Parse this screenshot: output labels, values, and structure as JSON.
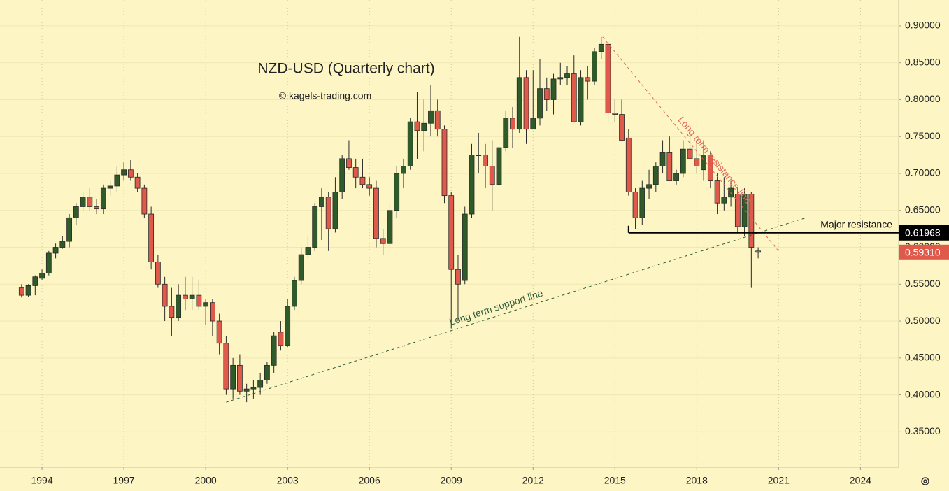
{
  "chart_data": {
    "type": "candlestick",
    "title": "NZD-USD (Quarterly chart)",
    "subtitle": "© kagels-trading.com",
    "up_color": "#2f5a2a",
    "down_color": "#e05a4b",
    "xlim": [
      1992.46,
      2025.4
    ],
    "ylim": [
      0.302,
      0.935
    ],
    "xticks": [
      1994,
      1997,
      2000,
      2003,
      2006,
      2009,
      2012,
      2015,
      2018,
      2021,
      2024
    ],
    "yticks": [
      {
        "value": 0.35,
        "label": "0.35000"
      },
      {
        "value": 0.4,
        "label": "0.40000"
      },
      {
        "value": 0.45,
        "label": "0.45000"
      },
      {
        "value": 0.5,
        "label": "0.50000"
      },
      {
        "value": 0.55,
        "label": "0.55000"
      },
      {
        "value": 0.6,
        "label": "0.60000"
      },
      {
        "value": 0.65,
        "label": "0.65000"
      },
      {
        "value": 0.7,
        "label": "0.70000"
      },
      {
        "value": 0.75,
        "label": "0.75000"
      },
      {
        "value": 0.8,
        "label": "0.80000"
      },
      {
        "value": 0.85,
        "label": "0.85000"
      },
      {
        "value": 0.9,
        "label": "0.90000"
      }
    ],
    "grid": true,
    "x": [
      1993.25,
      1993.5,
      1993.75,
      1994,
      1994.25,
      1994.5,
      1994.75,
      1995,
      1995.25,
      1995.5,
      1995.75,
      1996,
      1996.25,
      1996.5,
      1996.75,
      1997,
      1997.25,
      1997.5,
      1997.75,
      1998,
      1998.25,
      1998.5,
      1998.75,
      1999,
      1999.25,
      1999.5,
      1999.75,
      2000,
      2000.25,
      2000.5,
      2000.75,
      2001,
      2001.25,
      2001.5,
      2001.75,
      2002,
      2002.25,
      2002.5,
      2002.75,
      2003,
      2003.25,
      2003.5,
      2003.75,
      2004,
      2004.25,
      2004.5,
      2004.75,
      2005,
      2005.25,
      2005.5,
      2005.75,
      2006,
      2006.25,
      2006.5,
      2006.75,
      2007,
      2007.25,
      2007.5,
      2007.75,
      2008,
      2008.25,
      2008.5,
      2008.75,
      2009,
      2009.25,
      2009.5,
      2009.75,
      2010,
      2010.25,
      2010.5,
      2010.75,
      2011,
      2011.25,
      2011.5,
      2011.75,
      2012,
      2012.25,
      2012.5,
      2012.75,
      2013,
      2013.25,
      2013.5,
      2013.75,
      2014,
      2014.25,
      2014.5,
      2014.75,
      2015,
      2015.25,
      2015.5,
      2015.75,
      2016,
      2016.25,
      2016.5,
      2016.75,
      2017,
      2017.25,
      2017.5,
      2017.75,
      2018,
      2018.25,
      2018.5,
      2018.75,
      2019,
      2019.25,
      2019.5,
      2019.75,
      2020,
      2020.25
    ],
    "ohlc": [
      [
        0.545,
        0.55,
        0.532,
        0.535
      ],
      [
        0.535,
        0.55,
        0.533,
        0.548
      ],
      [
        0.548,
        0.562,
        0.535,
        0.56
      ],
      [
        0.558,
        0.57,
        0.555,
        0.565
      ],
      [
        0.565,
        0.595,
        0.562,
        0.592
      ],
      [
        0.592,
        0.605,
        0.585,
        0.6
      ],
      [
        0.6,
        0.615,
        0.598,
        0.608
      ],
      [
        0.608,
        0.645,
        0.6,
        0.64
      ],
      [
        0.64,
        0.66,
        0.63,
        0.655
      ],
      [
        0.655,
        0.675,
        0.65,
        0.668
      ],
      [
        0.668,
        0.68,
        0.65,
        0.655
      ],
      [
        0.655,
        0.665,
        0.645,
        0.652
      ],
      [
        0.652,
        0.685,
        0.645,
        0.68
      ],
      [
        0.68,
        0.69,
        0.67,
        0.683
      ],
      [
        0.683,
        0.71,
        0.675,
        0.698
      ],
      [
        0.698,
        0.715,
        0.69,
        0.705
      ],
      [
        0.705,
        0.718,
        0.69,
        0.695
      ],
      [
        0.695,
        0.7,
        0.675,
        0.68
      ],
      [
        0.68,
        0.685,
        0.64,
        0.645
      ],
      [
        0.645,
        0.655,
        0.57,
        0.58
      ],
      [
        0.58,
        0.59,
        0.545,
        0.55
      ],
      [
        0.55,
        0.56,
        0.5,
        0.52
      ],
      [
        0.52,
        0.545,
        0.48,
        0.505
      ],
      [
        0.505,
        0.55,
        0.5,
        0.535
      ],
      [
        0.535,
        0.56,
        0.515,
        0.53
      ],
      [
        0.53,
        0.56,
        0.515,
        0.535
      ],
      [
        0.535,
        0.555,
        0.515,
        0.52
      ],
      [
        0.52,
        0.53,
        0.495,
        0.525
      ],
      [
        0.525,
        0.53,
        0.48,
        0.5
      ],
      [
        0.5,
        0.51,
        0.455,
        0.47
      ],
      [
        0.47,
        0.48,
        0.4,
        0.408
      ],
      [
        0.408,
        0.45,
        0.395,
        0.44
      ],
      [
        0.44,
        0.455,
        0.4,
        0.405
      ],
      [
        0.405,
        0.415,
        0.39,
        0.408
      ],
      [
        0.408,
        0.42,
        0.395,
        0.41
      ],
      [
        0.41,
        0.43,
        0.4,
        0.42
      ],
      [
        0.42,
        0.445,
        0.415,
        0.44
      ],
      [
        0.44,
        0.485,
        0.43,
        0.48
      ],
      [
        0.485,
        0.5,
        0.46,
        0.467
      ],
      [
        0.467,
        0.53,
        0.465,
        0.52
      ],
      [
        0.52,
        0.56,
        0.515,
        0.555
      ],
      [
        0.555,
        0.6,
        0.55,
        0.59
      ],
      [
        0.59,
        0.615,
        0.585,
        0.6
      ],
      [
        0.6,
        0.66,
        0.595,
        0.655
      ],
      [
        0.655,
        0.68,
        0.61,
        0.668
      ],
      [
        0.668,
        0.675,
        0.595,
        0.625
      ],
      [
        0.625,
        0.695,
        0.62,
        0.675
      ],
      [
        0.675,
        0.725,
        0.665,
        0.72
      ],
      [
        0.72,
        0.745,
        0.705,
        0.708
      ],
      [
        0.708,
        0.72,
        0.68,
        0.695
      ],
      [
        0.695,
        0.72,
        0.68,
        0.685
      ],
      [
        0.685,
        0.695,
        0.67,
        0.68
      ],
      [
        0.68,
        0.69,
        0.6,
        0.612
      ],
      [
        0.612,
        0.625,
        0.59,
        0.605
      ],
      [
        0.605,
        0.66,
        0.6,
        0.65
      ],
      [
        0.65,
        0.71,
        0.64,
        0.7
      ],
      [
        0.7,
        0.72,
        0.68,
        0.71
      ],
      [
        0.71,
        0.775,
        0.705,
        0.77
      ],
      [
        0.77,
        0.81,
        0.72,
        0.758
      ],
      [
        0.758,
        0.8,
        0.73,
        0.768
      ],
      [
        0.768,
        0.82,
        0.75,
        0.785
      ],
      [
        0.785,
        0.8,
        0.75,
        0.76
      ],
      [
        0.76,
        0.765,
        0.66,
        0.67
      ],
      [
        0.67,
        0.675,
        0.49,
        0.57
      ],
      [
        0.57,
        0.59,
        0.5,
        0.55
      ],
      [
        0.555,
        0.655,
        0.55,
        0.645
      ],
      [
        0.645,
        0.74,
        0.64,
        0.725
      ],
      [
        0.725,
        0.755,
        0.7,
        0.725
      ],
      [
        0.725,
        0.74,
        0.68,
        0.71
      ],
      [
        0.71,
        0.745,
        0.65,
        0.685
      ],
      [
        0.685,
        0.75,
        0.68,
        0.735
      ],
      [
        0.735,
        0.785,
        0.73,
        0.775
      ],
      [
        0.775,
        0.79,
        0.735,
        0.76
      ],
      [
        0.76,
        0.885,
        0.755,
        0.83
      ],
      [
        0.83,
        0.84,
        0.74,
        0.76
      ],
      [
        0.76,
        0.84,
        0.76,
        0.775
      ],
      [
        0.775,
        0.855,
        0.765,
        0.815
      ],
      [
        0.815,
        0.83,
        0.785,
        0.8
      ],
      [
        0.8,
        0.835,
        0.78,
        0.828
      ],
      [
        0.828,
        0.85,
        0.82,
        0.83
      ],
      [
        0.83,
        0.845,
        0.82,
        0.835
      ],
      [
        0.835,
        0.86,
        0.77,
        0.77
      ],
      [
        0.77,
        0.84,
        0.765,
        0.83
      ],
      [
        0.83,
        0.845,
        0.8,
        0.825
      ],
      [
        0.825,
        0.87,
        0.82,
        0.865
      ],
      [
        0.865,
        0.885,
        0.855,
        0.875
      ],
      [
        0.875,
        0.88,
        0.77,
        0.782
      ],
      [
        0.782,
        0.8,
        0.77,
        0.78
      ],
      [
        0.78,
        0.8,
        0.745,
        0.745
      ],
      [
        0.748,
        0.76,
        0.67,
        0.675
      ],
      [
        0.675,
        0.68,
        0.625,
        0.64
      ],
      [
        0.64,
        0.69,
        0.63,
        0.68
      ],
      [
        0.68,
        0.705,
        0.665,
        0.685
      ],
      [
        0.685,
        0.715,
        0.675,
        0.71
      ],
      [
        0.71,
        0.745,
        0.7,
        0.728
      ],
      [
        0.728,
        0.75,
        0.69,
        0.69
      ],
      [
        0.69,
        0.705,
        0.685,
        0.7
      ],
      [
        0.7,
        0.745,
        0.695,
        0.733
      ],
      [
        0.733,
        0.76,
        0.72,
        0.72
      ],
      [
        0.72,
        0.745,
        0.7,
        0.71
      ],
      [
        0.705,
        0.745,
        0.69,
        0.725
      ],
      [
        0.725,
        0.73,
        0.68,
        0.69
      ],
      [
        0.69,
        0.7,
        0.645,
        0.66
      ],
      [
        0.66,
        0.695,
        0.65,
        0.668
      ],
      [
        0.668,
        0.69,
        0.655,
        0.68
      ],
      [
        0.672,
        0.68,
        0.62,
        0.628
      ],
      [
        0.628,
        0.68,
        0.615,
        0.672
      ],
      [
        0.672,
        0.675,
        0.545,
        0.6
      ],
      [
        0.595,
        0.6,
        0.585,
        0.5931
      ]
    ],
    "trend_lines": [
      {
        "label": "Long term resistance line",
        "color": "#e0685a",
        "x": [
          2014.55,
          2021
        ],
        "y": [
          0.885,
          0.595
        ]
      },
      {
        "label": "Long term support line",
        "color": "#2e5a3a",
        "x": [
          2000.75,
          2022
        ],
        "y": [
          0.39,
          0.64
        ]
      }
    ],
    "levels": [
      {
        "label": "Major resistance",
        "value": 0.61968,
        "value_label": "0.61968",
        "x_start": 2015.5,
        "color": "#000000"
      }
    ],
    "last_price": {
      "value": 0.5931,
      "label": "0.59310",
      "color": "#e05a4b"
    }
  }
}
